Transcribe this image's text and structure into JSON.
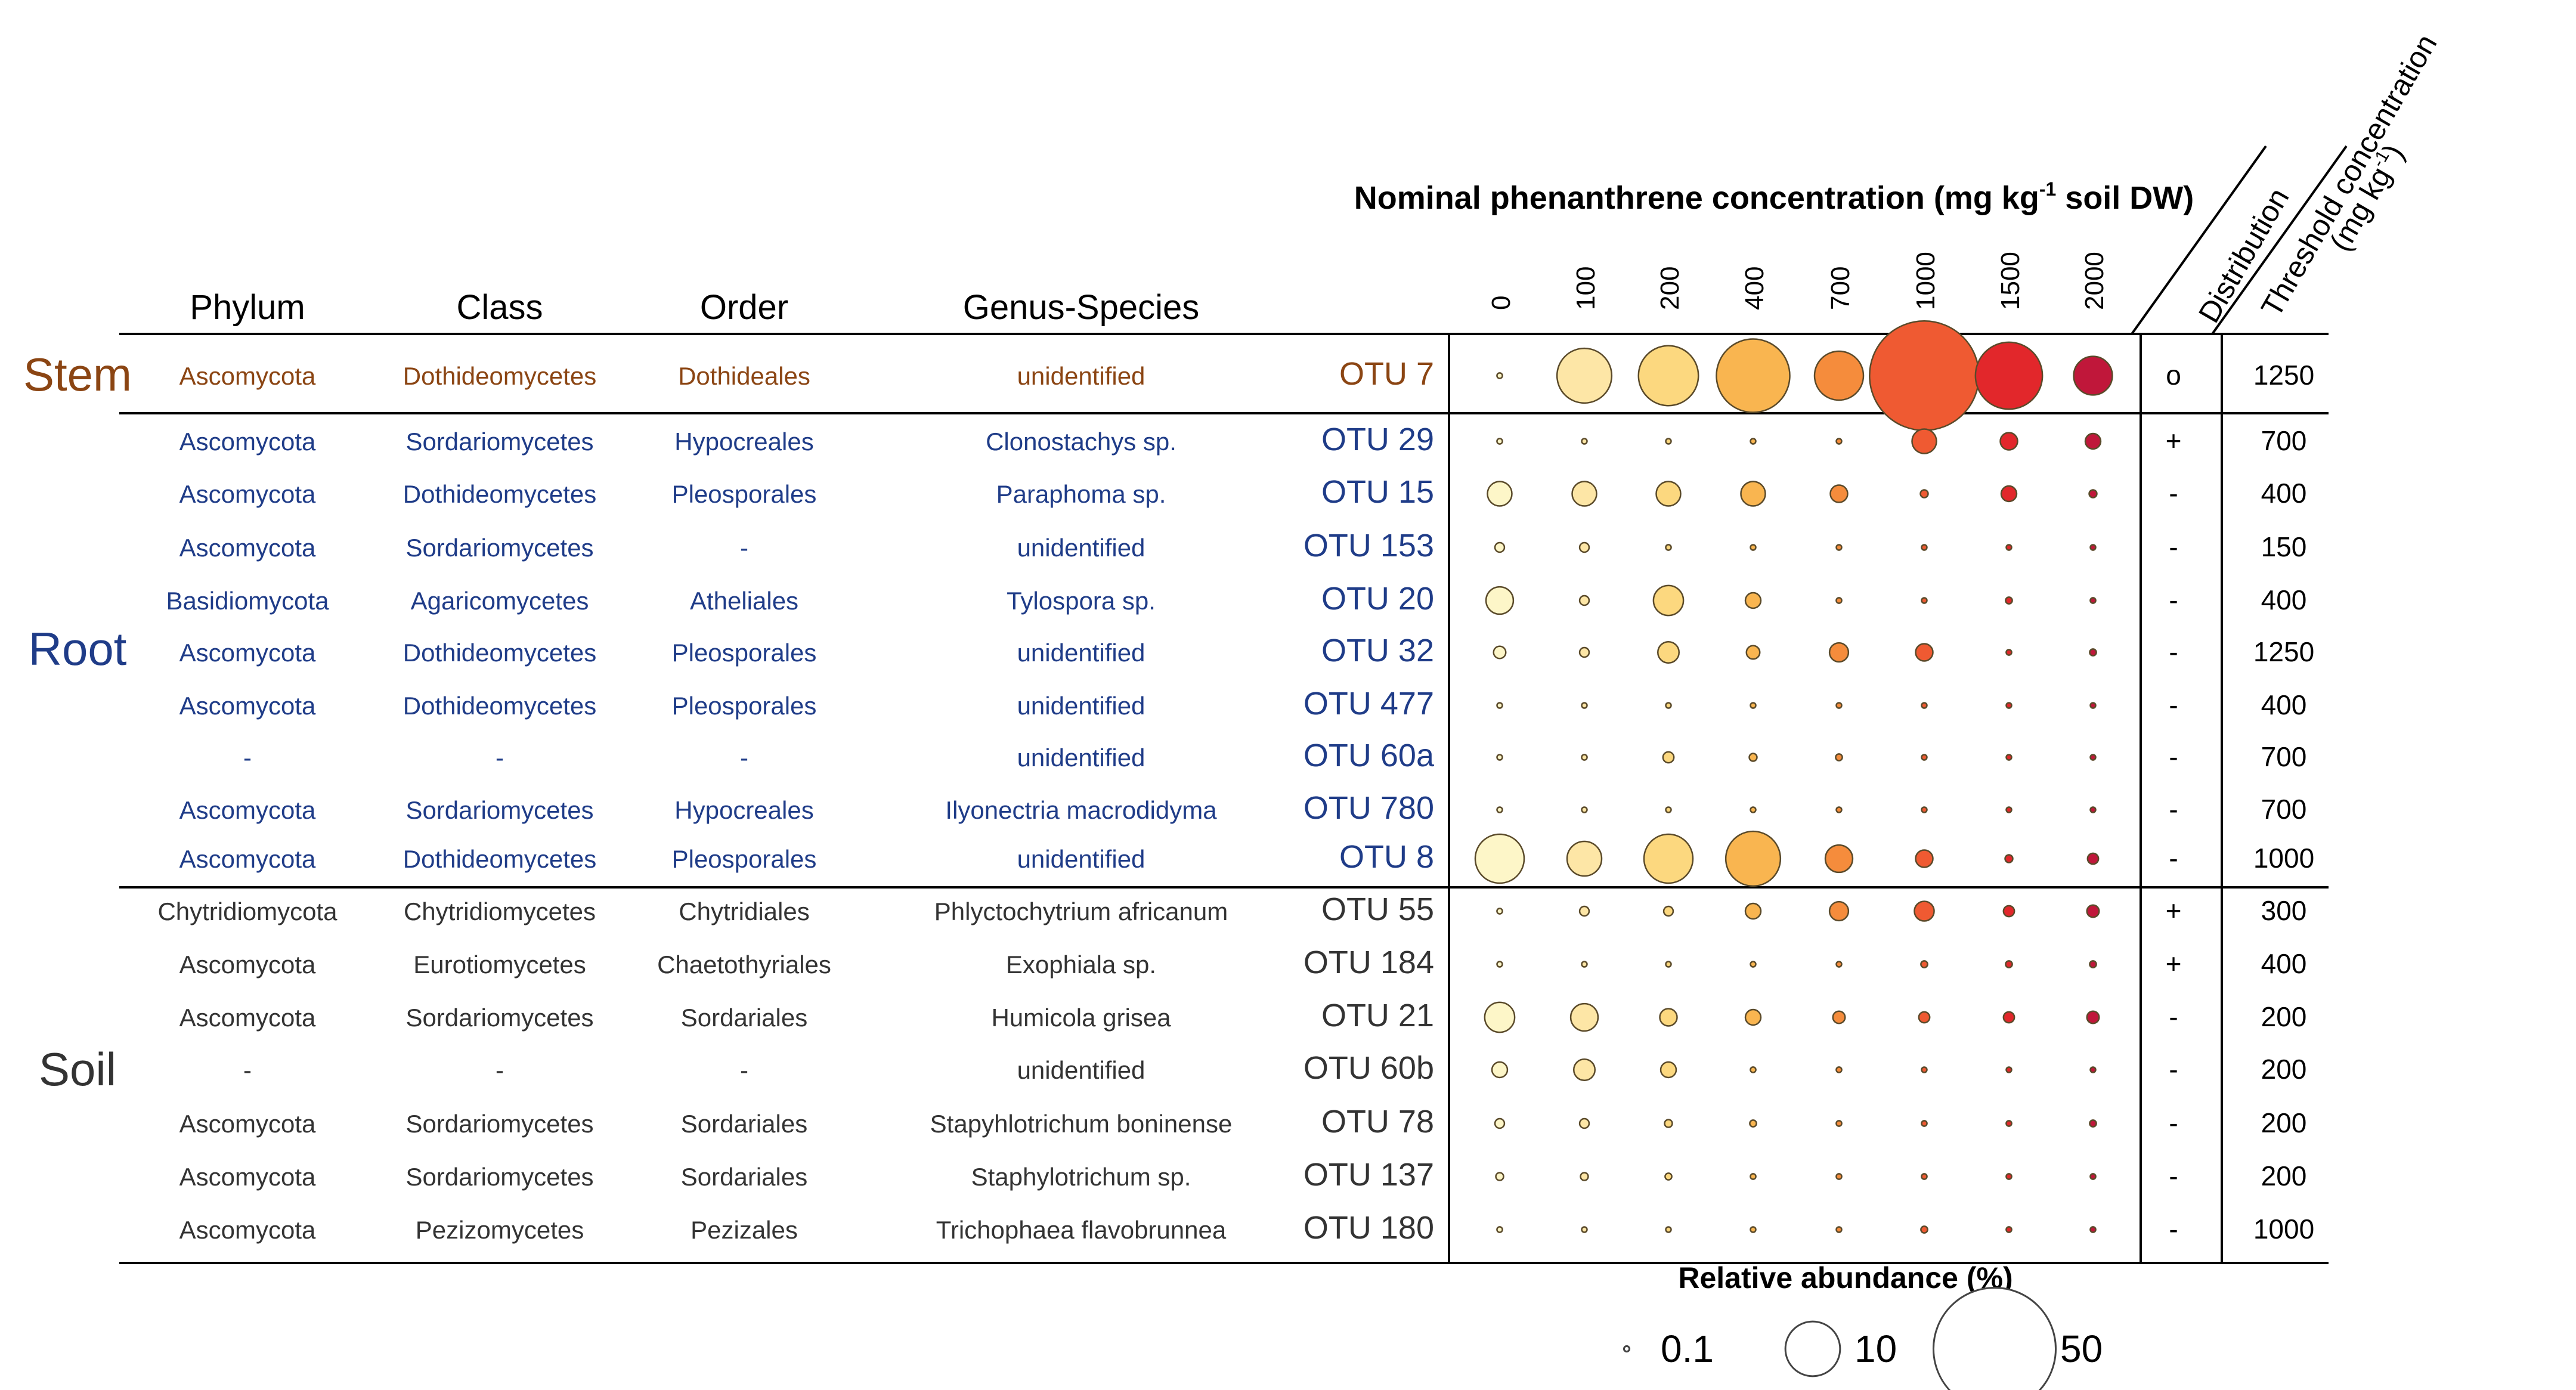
{
  "chart_data": {
    "type": "bubble-matrix",
    "title": "Nominal phenanthrene concentration (mg kg",
    "title_sup": "-1",
    "title_tail": " soil DW)",
    "column_headers": {
      "phylum": "Phylum",
      "class": "Class",
      "order": "Order",
      "genus": "Genus-Species",
      "distribution": "Distribution",
      "threshold_line1": "Threshold concentration",
      "threshold_line2_pre": "(mg kg",
      "threshold_line2_sup": "-1",
      "threshold_line2_post": ")"
    },
    "concentrations": [
      "0",
      "100",
      "200",
      "400",
      "700",
      "1000",
      "1500",
      "2000"
    ],
    "color_scale": [
      "#fdf6c8",
      "#fde6a6",
      "#fcd87f",
      "#f9b550",
      "#f58c3c",
      "#ef5a32",
      "#e2272b",
      "#c0173a"
    ],
    "groups": [
      {
        "name": "Stem",
        "color": "#8b4513",
        "start": 0,
        "end": 0
      },
      {
        "name": "Root",
        "color": "#1f3c88",
        "start": 1,
        "end": 9
      },
      {
        "name": "Soil",
        "color": "#333333",
        "start": 10,
        "end": 16
      }
    ],
    "rows": [
      {
        "group": "Stem",
        "phylum": "Ascomycota",
        "class": "Dothideomycetes",
        "order": "Dothideales",
        "genus": "unidentified",
        "otu": "OTU 7",
        "distribution": "o",
        "threshold": "1250",
        "abundance": [
          0.1,
          10,
          12,
          18,
          8,
          40,
          15,
          5
        ]
      },
      {
        "group": "Root",
        "phylum": "Ascomycota",
        "class": "Sordariomycetes",
        "order": "Hypocreales",
        "genus": "Clonostachys sp.",
        "otu": "OTU 29",
        "distribution": "+",
        "threshold": "700",
        "abundance": [
          0.1,
          0.05,
          0.03,
          0.03,
          0.05,
          2.0,
          1.0,
          0.8
        ]
      },
      {
        "group": "Root",
        "phylum": "Ascomycota",
        "class": "Dothideomycetes",
        "order": "Pleosporales",
        "genus": "Paraphoma sp.",
        "otu": "OTU 15",
        "distribution": "-",
        "threshold": "400",
        "abundance": [
          2.0,
          2.0,
          2.0,
          2.0,
          1.0,
          0.2,
          0.8,
          0.2
        ]
      },
      {
        "group": "Root",
        "phylum": "Ascomycota",
        "class": "Sordariomycetes",
        "order": "-",
        "genus": "unidentified",
        "otu": "OTU 153",
        "distribution": "-",
        "threshold": "150",
        "abundance": [
          0.3,
          0.3,
          0.1,
          0.08,
          0.05,
          0.08,
          0.05,
          0.03
        ]
      },
      {
        "group": "Root",
        "phylum": "Basidiomycota",
        "class": "Agaricomycetes",
        "order": "Atheliales",
        "genus": "Tylospora sp.",
        "otu": "OTU 20",
        "distribution": "-",
        "threshold": "400",
        "abundance": [
          2.5,
          0.3,
          3.0,
          0.8,
          0.1,
          0.08,
          0.15,
          0.1
        ]
      },
      {
        "group": "Root",
        "phylum": "Ascomycota",
        "class": "Dothideomycetes",
        "order": "Pleosporales",
        "genus": "unidentified",
        "otu": "OTU 32",
        "distribution": "-",
        "threshold": "1250",
        "abundance": [
          0.5,
          0.3,
          1.5,
          0.6,
          1.2,
          1.0,
          0.1,
          0.15
        ]
      },
      {
        "group": "Root",
        "phylum": "Ascomycota",
        "class": "Dothideomycetes",
        "order": "Pleosporales",
        "genus": "unidentified",
        "otu": "OTU 477",
        "distribution": "-",
        "threshold": "400",
        "abundance": [
          0.05,
          0.03,
          0.08,
          0.05,
          0.05,
          0.05,
          0.03,
          0.03
        ]
      },
      {
        "group": "Root",
        "phylum": "-",
        "class": "-",
        "order": "-",
        "genus": "unidentified",
        "otu": "OTU 60a",
        "distribution": "-",
        "threshold": "700",
        "abundance": [
          0.03,
          0.1,
          0.4,
          0.2,
          0.15,
          0.03,
          0.05,
          0.03
        ]
      },
      {
        "group": "Root",
        "phylum": "Ascomycota",
        "class": "Sordariomycetes",
        "order": "Hypocreales",
        "genus": "Ilyonectria macrodidyma",
        "otu": "OTU 780",
        "distribution": "-",
        "threshold": "700",
        "abundance": [
          0.03,
          0.05,
          0.03,
          0.03,
          0.03,
          0.03,
          0.03,
          0.03
        ]
      },
      {
        "group": "Root",
        "phylum": "Ascomycota",
        "class": "Dothideomycetes",
        "order": "Pleosporales",
        "genus": "unidentified",
        "otu": "OTU 8",
        "distribution": "-",
        "threshold": "1000",
        "abundance": [
          8,
          4,
          8,
          10,
          2.5,
          1.0,
          0.2,
          0.4
        ]
      },
      {
        "group": "Soil",
        "phylum": "Chytridiomycota",
        "class": "Chytridiomycetes",
        "order": "Chytridiales",
        "genus": "Phlyctochytrium africanum",
        "otu": "OTU 55",
        "distribution": "+",
        "threshold": "300",
        "abundance": [
          0.1,
          0.3,
          0.3,
          0.8,
          1.2,
          1.3,
          0.4,
          0.5
        ]
      },
      {
        "group": "Soil",
        "phylum": "Ascomycota",
        "class": "Eurotiomycetes",
        "order": "Chaetothyriales",
        "genus": "Exophiala sp.",
        "otu": "OTU 184",
        "distribution": "+",
        "threshold": "400",
        "abundance": [
          0.05,
          0.05,
          0.05,
          0.08,
          0.08,
          0.15,
          0.15,
          0.15
        ]
      },
      {
        "group": "Soil",
        "phylum": "Ascomycota",
        "class": "Sordariomycetes",
        "order": "Sordariales",
        "genus": "Humicola grisea",
        "otu": "OTU 21",
        "distribution": "-",
        "threshold": "200",
        "abundance": [
          3.0,
          2.5,
          1.0,
          0.8,
          0.5,
          0.4,
          0.4,
          0.5
        ]
      },
      {
        "group": "Soil",
        "phylum": "-",
        "class": "-",
        "order": "-",
        "genus": "unidentified",
        "otu": "OTU 60b",
        "distribution": "-",
        "threshold": "200",
        "abundance": [
          0.8,
          1.5,
          0.8,
          0.1,
          0.1,
          0.03,
          0.03,
          0.03
        ]
      },
      {
        "group": "Soil",
        "phylum": "Ascomycota",
        "class": "Sordariomycetes",
        "order": "Sordariales",
        "genus": "Stapyhlotrichum boninense",
        "otu": "OTU 78",
        "distribution": "-",
        "threshold": "200",
        "abundance": [
          0.3,
          0.3,
          0.2,
          0.15,
          0.1,
          0.1,
          0.1,
          0.15
        ]
      },
      {
        "group": "Soil",
        "phylum": "Ascomycota",
        "class": "Sordariomycetes",
        "order": "Sordariales",
        "genus": "Staphylotrichum sp.",
        "otu": "OTU 137",
        "distribution": "-",
        "threshold": "200",
        "abundance": [
          0.2,
          0.2,
          0.15,
          0.1,
          0.1,
          0.1,
          0.1,
          0.1
        ]
      },
      {
        "group": "Soil",
        "phylum": "Ascomycota",
        "class": "Pezizomycetes",
        "order": "Pezizales",
        "genus": "Trichophaea flavobrunnea",
        "otu": "OTU 180",
        "distribution": "-",
        "threshold": "1000",
        "abundance": [
          0.1,
          0.08,
          0.05,
          0.05,
          0.08,
          0.15,
          0.1,
          0.1
        ]
      }
    ],
    "legend": {
      "title": "Relative abundance (%)",
      "values": [
        0.1,
        10,
        50
      ],
      "labels": [
        "0.1",
        "10",
        "50"
      ]
    }
  }
}
